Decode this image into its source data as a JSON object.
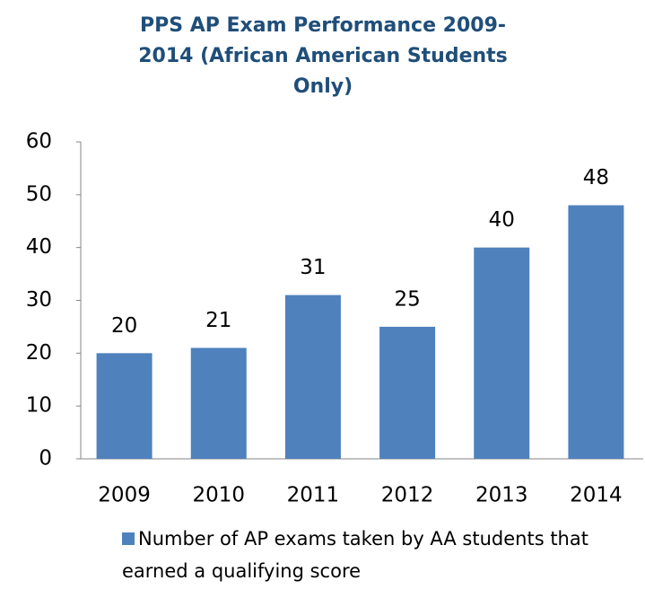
{
  "chart_data": {
    "type": "bar",
    "title": "PPS AP Exam Performance 2009-2014 (African American Students Only)",
    "categories": [
      "2009",
      "2010",
      "2011",
      "2012",
      "2013",
      "2014"
    ],
    "series": [
      {
        "name": "Number of AP exams taken by AA students that earned a qualifying score",
        "color": "#4f81bd",
        "values": [
          20,
          21,
          31,
          25,
          40,
          48
        ]
      }
    ],
    "ylim": [
      0,
      60
    ],
    "yticks": [
      0,
      10,
      20,
      30,
      40,
      50,
      60
    ],
    "grid": false,
    "legend": "bottom"
  }
}
